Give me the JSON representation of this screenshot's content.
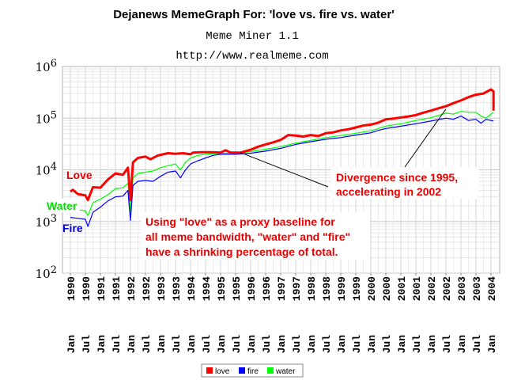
{
  "chart_data": {
    "type": "line",
    "title": "Dejanews MemeGraph For: 'love vs. fire vs. water'",
    "subtitle": "Meme Miner 1.1",
    "url": "http://www.realmeme.com",
    "y_scale": "log",
    "ylim": [
      100,
      1000000
    ],
    "y_ticks": [
      {
        "value": 100,
        "base": "10",
        "exp": "2"
      },
      {
        "value": 1000,
        "base": "10",
        "exp": "3"
      },
      {
        "value": 10000,
        "base": "10",
        "exp": "4"
      },
      {
        "value": 100000,
        "base": "10",
        "exp": "5"
      },
      {
        "value": 1000000,
        "base": "10",
        "exp": "6"
      }
    ],
    "x_range": [
      "1990-01",
      "2004-02"
    ],
    "x_ticks": [
      {
        "top": "1990",
        "bottom": "Jan",
        "date": "1990-01"
      },
      {
        "top": "1990",
        "bottom": "Jul",
        "date": "1990-07"
      },
      {
        "top": "1991",
        "bottom": "Jan",
        "date": "1991-01"
      },
      {
        "top": "1991",
        "bottom": "Jul",
        "date": "1991-07"
      },
      {
        "top": "1992",
        "bottom": "Jan",
        "date": "1992-01"
      },
      {
        "top": "1992",
        "bottom": "Jul",
        "date": "1992-07"
      },
      {
        "top": "1993",
        "bottom": "Jan",
        "date": "1993-01"
      },
      {
        "top": "1993",
        "bottom": "Jul",
        "date": "1993-07"
      },
      {
        "top": "1994",
        "bottom": "Jan",
        "date": "1994-01"
      },
      {
        "top": "1994",
        "bottom": "Jul",
        "date": "1994-07"
      },
      {
        "top": "1995",
        "bottom": "Jan",
        "date": "1995-01"
      },
      {
        "top": "1995",
        "bottom": "Jul",
        "date": "1995-07"
      },
      {
        "top": "1996",
        "bottom": "Jan",
        "date": "1996-01"
      },
      {
        "top": "1996",
        "bottom": "Jul",
        "date": "1996-07"
      },
      {
        "top": "1997",
        "bottom": "Jan",
        "date": "1997-01"
      },
      {
        "top": "1997",
        "bottom": "Jul",
        "date": "1997-07"
      },
      {
        "top": "1998",
        "bottom": "Jan",
        "date": "1998-01"
      },
      {
        "top": "1998",
        "bottom": "Jul",
        "date": "1998-07"
      },
      {
        "top": "1999",
        "bottom": "Jan",
        "date": "1999-01"
      },
      {
        "top": "1999",
        "bottom": "Jul",
        "date": "1999-07"
      },
      {
        "top": "2000",
        "bottom": "Jan",
        "date": "2000-01"
      },
      {
        "top": "2000",
        "bottom": "Jul",
        "date": "2000-07"
      },
      {
        "top": "2001",
        "bottom": "Jan",
        "date": "2001-01"
      },
      {
        "top": "2001",
        "bottom": "Jul",
        "date": "2001-07"
      },
      {
        "top": "2002",
        "bottom": "Jan",
        "date": "2002-01"
      },
      {
        "top": "2002",
        "bottom": "Jul",
        "date": "2002-07"
      },
      {
        "top": "2003",
        "bottom": "Jan",
        "date": "2003-01"
      },
      {
        "top": "2003",
        "bottom": "Jul",
        "date": "2003-07"
      },
      {
        "top": "2004",
        "bottom": "Jan",
        "date": "2004-01"
      }
    ],
    "grid": true,
    "legend_position": "bottom-center",
    "series": [
      {
        "name": "love",
        "color": "#ff0000",
        "points": [
          [
            "1990-01",
            3800
          ],
          [
            "1990-02",
            4100
          ],
          [
            "1990-04",
            3400
          ],
          [
            "1990-07",
            3200
          ],
          [
            "1990-08",
            2600
          ],
          [
            "1990-10",
            4600
          ],
          [
            "1991-01",
            4500
          ],
          [
            "1991-04",
            6500
          ],
          [
            "1991-07",
            8500
          ],
          [
            "1991-10",
            8000
          ],
          [
            "1991-12",
            11000
          ],
          [
            "1992-01",
            2600
          ],
          [
            "1992-02",
            14000
          ],
          [
            "1992-04",
            17000
          ],
          [
            "1992-07",
            18000
          ],
          [
            "1992-09",
            16000
          ],
          [
            "1992-12",
            19000
          ],
          [
            "1993-04",
            21000
          ],
          [
            "1993-07",
            20500
          ],
          [
            "1993-10",
            21000
          ],
          [
            "1994-01",
            20000
          ],
          [
            "1994-02",
            21500
          ],
          [
            "1994-06",
            22000
          ],
          [
            "1994-09",
            22000
          ],
          [
            "1995-01",
            21500
          ],
          [
            "1995-03",
            24000
          ],
          [
            "1995-05",
            21500
          ],
          [
            "1995-09",
            21500
          ],
          [
            "1996-01",
            24500
          ],
          [
            "1996-04",
            28000
          ],
          [
            "1996-07",
            31000
          ],
          [
            "1996-10",
            34000
          ],
          [
            "1997-01",
            38000
          ],
          [
            "1997-04",
            47000
          ],
          [
            "1997-07",
            46000
          ],
          [
            "1997-10",
            44000
          ],
          [
            "1998-01",
            47000
          ],
          [
            "1998-04",
            45000
          ],
          [
            "1998-07",
            51000
          ],
          [
            "1998-10",
            53000
          ],
          [
            "1999-01",
            58000
          ],
          [
            "1999-04",
            61000
          ],
          [
            "1999-07",
            66000
          ],
          [
            "1999-10",
            72000
          ],
          [
            "2000-01",
            75000
          ],
          [
            "2000-04",
            82000
          ],
          [
            "2000-07",
            95000
          ],
          [
            "2000-10",
            98000
          ],
          [
            "2001-01",
            103000
          ],
          [
            "2001-04",
            108000
          ],
          [
            "2001-07",
            115000
          ],
          [
            "2001-10",
            128000
          ],
          [
            "2002-01",
            140000
          ],
          [
            "2002-04",
            155000
          ],
          [
            "2002-07",
            170000
          ],
          [
            "2002-10",
            195000
          ],
          [
            "2003-01",
            220000
          ],
          [
            "2003-04",
            255000
          ],
          [
            "2003-07",
            285000
          ],
          [
            "2003-10",
            300000
          ],
          [
            "2004-01",
            360000
          ],
          [
            "2004-02",
            330000
          ],
          [
            "2004-02",
            140000
          ]
        ]
      },
      {
        "name": "fire",
        "color": "#0000ff",
        "points": [
          [
            "1990-01",
            1200
          ],
          [
            "1990-04",
            1150
          ],
          [
            "1990-07",
            1100
          ],
          [
            "1990-08",
            800
          ],
          [
            "1990-10",
            1500
          ],
          [
            "1991-01",
            1900
          ],
          [
            "1991-04",
            2500
          ],
          [
            "1991-07",
            3000
          ],
          [
            "1991-10",
            3100
          ],
          [
            "1991-12",
            4000
          ],
          [
            "1992-01",
            1050
          ],
          [
            "1992-02",
            5000
          ],
          [
            "1992-04",
            6000
          ],
          [
            "1992-07",
            6200
          ],
          [
            "1992-10",
            6000
          ],
          [
            "1993-01",
            7500
          ],
          [
            "1993-04",
            9000
          ],
          [
            "1993-07",
            9500
          ],
          [
            "1993-09",
            7000
          ],
          [
            "1993-11",
            10000
          ],
          [
            "1994-01",
            13000
          ],
          [
            "1994-04",
            15000
          ],
          [
            "1994-07",
            17000
          ],
          [
            "1994-10",
            19000
          ],
          [
            "1995-01",
            20000
          ],
          [
            "1995-07",
            20000
          ],
          [
            "1996-01",
            21000
          ],
          [
            "1996-07",
            23000
          ],
          [
            "1997-01",
            26000
          ],
          [
            "1997-07",
            31000
          ],
          [
            "1998-01",
            35000
          ],
          [
            "1998-07",
            39000
          ],
          [
            "1999-01",
            42000
          ],
          [
            "1999-07",
            47000
          ],
          [
            "2000-01",
            52000
          ],
          [
            "2000-04",
            58000
          ],
          [
            "2000-07",
            63000
          ],
          [
            "2000-10",
            66000
          ],
          [
            "2001-01",
            70000
          ],
          [
            "2001-07",
            78000
          ],
          [
            "2002-01",
            88000
          ],
          [
            "2002-07",
            100000
          ],
          [
            "2002-10",
            95000
          ],
          [
            "2003-01",
            110000
          ],
          [
            "2003-04",
            90000
          ],
          [
            "2003-07",
            95000
          ],
          [
            "2003-09",
            80000
          ],
          [
            "2003-11",
            95000
          ],
          [
            "2004-01",
            90000
          ],
          [
            "2004-02",
            88000
          ]
        ]
      },
      {
        "name": "water",
        "color": "#00ff00",
        "points": [
          [
            "1990-01",
            1800
          ],
          [
            "1990-04",
            1700
          ],
          [
            "1990-07",
            1600
          ],
          [
            "1990-08",
            1300
          ],
          [
            "1990-10",
            2300
          ],
          [
            "1991-01",
            2700
          ],
          [
            "1991-04",
            3300
          ],
          [
            "1991-07",
            4300
          ],
          [
            "1991-10",
            4500
          ],
          [
            "1991-12",
            5500
          ],
          [
            "1992-01",
            1600
          ],
          [
            "1992-02",
            7000
          ],
          [
            "1992-04",
            8500
          ],
          [
            "1992-07",
            9000
          ],
          [
            "1992-10",
            9500
          ],
          [
            "1993-01",
            11000
          ],
          [
            "1993-04",
            12000
          ],
          [
            "1993-07",
            13000
          ],
          [
            "1993-09",
            10000
          ],
          [
            "1993-11",
            14000
          ],
          [
            "1994-01",
            17000
          ],
          [
            "1994-04",
            19000
          ],
          [
            "1994-07",
            20000
          ],
          [
            "1994-10",
            20500
          ],
          [
            "1995-01",
            21000
          ],
          [
            "1995-07",
            21000
          ],
          [
            "1996-01",
            22500
          ],
          [
            "1996-07",
            25000
          ],
          [
            "1997-01",
            28000
          ],
          [
            "1997-07",
            33000
          ],
          [
            "1998-01",
            37000
          ],
          [
            "1998-07",
            42000
          ],
          [
            "1999-01",
            46000
          ],
          [
            "1999-07",
            51000
          ],
          [
            "2000-01",
            57000
          ],
          [
            "2000-04",
            63000
          ],
          [
            "2000-07",
            70000
          ],
          [
            "2000-10",
            74000
          ],
          [
            "2001-01",
            78000
          ],
          [
            "2001-07",
            90000
          ],
          [
            "2002-01",
            102000
          ],
          [
            "2002-07",
            125000
          ],
          [
            "2002-10",
            120000
          ],
          [
            "2003-01",
            135000
          ],
          [
            "2003-04",
            130000
          ],
          [
            "2003-07",
            130000
          ],
          [
            "2003-09",
            110000
          ],
          [
            "2003-11",
            100000
          ],
          [
            "2004-01",
            120000
          ],
          [
            "2004-02",
            130000
          ]
        ]
      }
    ],
    "annotations": {
      "love_label": "Love",
      "water_label": "Water",
      "fire_label": "Fire",
      "divergence": [
        "Divergence since 1995,",
        "accelerating in 2002"
      ],
      "proxy": [
        "Using \"love\" as a proxy baseline for",
        "all meme bandwidth, \"water\" and \"fire\"",
        "have a shrinking percentage of total."
      ]
    }
  }
}
